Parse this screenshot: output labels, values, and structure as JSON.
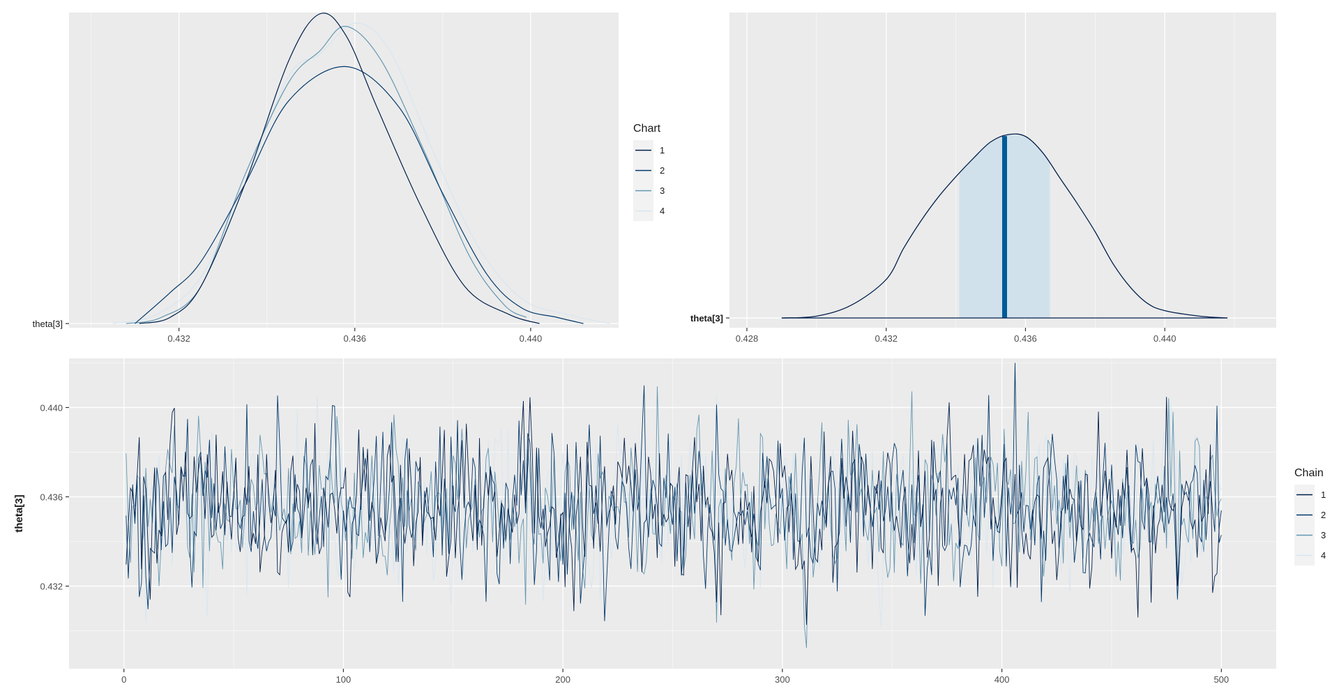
{
  "chart_data": [
    {
      "type": "line",
      "name": "density-overlay",
      "xlim": [
        0.4295,
        0.442
      ],
      "ylim": [
        0,
        1.0
      ],
      "xticks": [
        0.432,
        0.436,
        0.44
      ],
      "xtick_labels": [
        "0.432",
        "0.436",
        "0.440"
      ],
      "ytick_label": "theta[3]",
      "grid": true,
      "series": [
        {
          "name": "1",
          "color": "#011f4b",
          "x": [
            0.4311,
            0.4318,
            0.4325,
            0.4335,
            0.4345,
            0.4352,
            0.4358,
            0.4365,
            0.4375,
            0.4385,
            0.4395,
            0.4402
          ],
          "y": [
            0.0,
            0.02,
            0.12,
            0.45,
            0.85,
            1.0,
            0.93,
            0.7,
            0.38,
            0.12,
            0.03,
            0.0
          ]
        },
        {
          "name": "2",
          "color": "#03396c",
          "x": [
            0.431,
            0.4318,
            0.4325,
            0.4335,
            0.4345,
            0.4358,
            0.437,
            0.438,
            0.439,
            0.4398,
            0.4406,
            0.4412
          ],
          "y": [
            0.0,
            0.1,
            0.2,
            0.45,
            0.72,
            0.83,
            0.7,
            0.42,
            0.16,
            0.05,
            0.02,
            0.0
          ]
        },
        {
          "name": "3",
          "color": "#6497b1",
          "x": [
            0.4308,
            0.4316,
            0.4325,
            0.4335,
            0.4345,
            0.4352,
            0.4358,
            0.4366,
            0.4376,
            0.4386,
            0.4394,
            0.4399
          ],
          "y": [
            0.0,
            0.02,
            0.12,
            0.48,
            0.78,
            0.88,
            0.96,
            0.85,
            0.55,
            0.22,
            0.06,
            0.02
          ]
        },
        {
          "name": "4",
          "color": "#d8e6f0",
          "x": [
            0.4305,
            0.4315,
            0.4325,
            0.4335,
            0.4345,
            0.4352,
            0.436,
            0.4368,
            0.4378,
            0.4388,
            0.4398,
            0.4408,
            0.4418
          ],
          "y": [
            0.0,
            0.03,
            0.15,
            0.45,
            0.8,
            0.87,
            0.97,
            0.88,
            0.55,
            0.25,
            0.08,
            0.03,
            0.0
          ]
        }
      ],
      "legend": {
        "title": "Chart",
        "labels": [
          "1",
          "2",
          "3",
          "4"
        ],
        "placement": "right"
      }
    },
    {
      "type": "area",
      "name": "posterior-area",
      "xlim": [
        0.4275,
        0.4432
      ],
      "ylim": [
        0,
        1.0
      ],
      "xticks": [
        0.428,
        0.432,
        0.436,
        0.44
      ],
      "xtick_labels": [
        "0.428",
        "0.432",
        "0.436",
        "0.440"
      ],
      "ytick_label": "theta[3]",
      "grid": true,
      "median": 0.4354,
      "interval": [
        0.4341,
        0.4367
      ],
      "density": {
        "x": [
          0.429,
          0.43,
          0.431,
          0.432,
          0.4325,
          0.433,
          0.4335,
          0.434,
          0.4345,
          0.435,
          0.4355,
          0.436,
          0.4365,
          0.437,
          0.4375,
          0.438,
          0.4385,
          0.439,
          0.4395,
          0.44,
          0.441,
          0.4418
        ],
        "y": [
          0.0,
          0.01,
          0.07,
          0.21,
          0.38,
          0.53,
          0.66,
          0.77,
          0.87,
          0.96,
          1.0,
          0.99,
          0.9,
          0.76,
          0.62,
          0.47,
          0.3,
          0.17,
          0.08,
          0.04,
          0.01,
          0.0
        ]
      },
      "colors": {
        "line": "#011f4b",
        "fill": "#d1e1ec",
        "median": "#005b96"
      }
    },
    {
      "type": "line",
      "name": "trace",
      "xlim": [
        -25,
        525
      ],
      "ylim": [
        0.4283,
        0.4422
      ],
      "xticks": [
        0,
        100,
        200,
        300,
        400,
        500
      ],
      "xtick_labels": [
        "0",
        "100",
        "200",
        "300",
        "400",
        "500"
      ],
      "yticks": [
        0.432,
        0.436,
        0.44
      ],
      "ytick_labels": [
        "0.432",
        "0.436",
        "0.440"
      ],
      "ylabel": "theta[3]",
      "grid": true,
      "draws_per_chain": 500,
      "trace_mean": 0.4356,
      "trace_sd": 0.0018,
      "series": [
        {
          "name": "1",
          "color": "#011f4b"
        },
        {
          "name": "2",
          "color": "#03396c"
        },
        {
          "name": "3",
          "color": "#6497b1"
        },
        {
          "name": "4",
          "color": "#d8e6f0"
        }
      ],
      "legend": {
        "title": "Chain",
        "labels": [
          "1",
          "2",
          "3",
          "4"
        ],
        "placement": "right"
      }
    }
  ]
}
